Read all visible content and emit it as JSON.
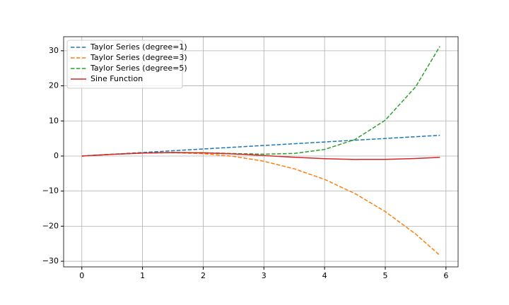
{
  "chart_data": {
    "type": "line",
    "x": [
      0,
      0.5,
      1,
      1.5,
      2,
      2.5,
      3,
      3.5,
      4,
      4.5,
      5,
      5.5,
      5.9
    ],
    "series": [
      {
        "name": "Taylor Series (degree=1)",
        "color": "#1f77b4",
        "linestyle": "dashed",
        "values": [
          0,
          0.5,
          1,
          1.5,
          2,
          2.5,
          3,
          3.5,
          4,
          4.5,
          5,
          5.5,
          5.9
        ]
      },
      {
        "name": "Taylor Series (degree=3)",
        "color": "#ff7f0e",
        "linestyle": "dashed",
        "values": [
          0,
          0.479,
          0.833,
          0.938,
          0.667,
          -0.104,
          -1.5,
          -3.646,
          -6.667,
          -10.688,
          -15.833,
          -22.229,
          -28.33
        ]
      },
      {
        "name": "Taylor Series (degree=5)",
        "color": "#2ca02c",
        "linestyle": "dashed",
        "values": [
          0,
          0.479,
          0.842,
          1.001,
          0.933,
          0.71,
          0.525,
          0.731,
          1.867,
          4.69,
          10.208,
          19.711,
          31.25
        ]
      },
      {
        "name": "Sine Function",
        "color": "#d62728",
        "linestyle": "solid",
        "values": [
          0,
          0.479,
          0.841,
          0.997,
          0.909,
          0.598,
          0.141,
          -0.351,
          -0.757,
          -0.978,
          -0.959,
          -0.706,
          -0.374
        ]
      }
    ],
    "xlim": [
      -0.3,
      6.2
    ],
    "ylim": [
      -31.6,
      34
    ],
    "xticks": [
      0,
      1,
      2,
      3,
      4,
      5,
      6
    ],
    "yticks": [
      {
        "value": -30,
        "label": "−30"
      },
      {
        "value": -20,
        "label": "−20"
      },
      {
        "value": -10,
        "label": "−10"
      },
      0,
      10,
      20,
      30
    ],
    "grid": true,
    "legend": "upper left"
  }
}
